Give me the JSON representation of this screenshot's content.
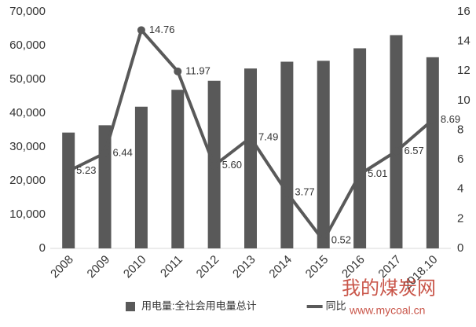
{
  "chart_data": {
    "type": "bar-line",
    "categories": [
      "2008",
      "2009",
      "2010",
      "2011",
      "2012",
      "2013",
      "2014",
      "2015",
      "2016",
      "2017",
      "2018.10"
    ],
    "series": [
      {
        "name": "用电量:全社会用电量总计",
        "type": "bar",
        "color": "#595959",
        "values": [
          34268,
          36430,
          41923,
          46928,
          49591,
          53223,
          55233,
          55500,
          59198,
          63077,
          56554
        ]
      },
      {
        "name": "同比",
        "type": "line",
        "axis": "y2",
        "color": "#595959",
        "values": [
          5.23,
          6.44,
          14.76,
          11.97,
          5.6,
          7.49,
          3.77,
          0.52,
          5.01,
          6.57,
          8.69
        ],
        "value_labels": [
          "5.23",
          "6.44",
          "14.76",
          "11.97",
          "5.60",
          "7.49",
          "3.77",
          "0.52",
          "5.01",
          "6.57",
          "8.69"
        ]
      }
    ],
    "ylim": [
      0,
      70000
    ],
    "yticks": [
      0,
      {
        "value": 10000,
        "label": "10,000"
      },
      {
        "value": 20000,
        "label": "20,000"
      },
      {
        "value": 30000,
        "label": "30,000"
      },
      {
        "value": 40000,
        "label": "40,000"
      },
      {
        "value": 50000,
        "label": "50,000"
      },
      {
        "value": 60000,
        "label": "60,000"
      },
      {
        "value": 70000,
        "label": "70,000"
      }
    ],
    "y2lim": [
      0,
      16
    ],
    "y2ticks": [
      0,
      2,
      4,
      6,
      8,
      10,
      12,
      14,
      16
    ],
    "grid": false,
    "legend": "bottom",
    "watermark": {
      "title": "我的煤炭网",
      "url": "www.mycoal.cn"
    }
  }
}
